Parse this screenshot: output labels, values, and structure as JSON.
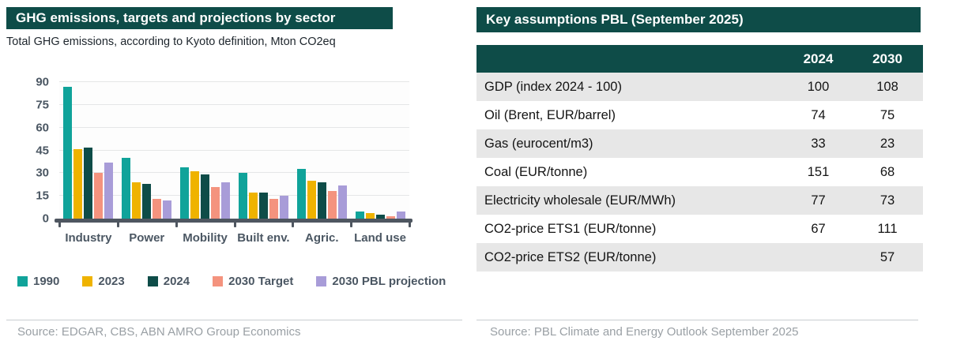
{
  "left_panel": {
    "title": "GHG emissions, targets and projections by sector",
    "subtitle": "Total GHG emissions, according to Kyoto definition, Mton CO2eq",
    "source": "Source: EDGAR, CBS, ABN AMRO Group Economics"
  },
  "right_panel": {
    "title": "Key assumptions PBL (September 2025)",
    "source": "Source: PBL Climate and Energy Outlook September 2025",
    "table": {
      "columns": [
        "",
        "2024",
        "2030"
      ],
      "rows": [
        {
          "label": "GDP (index 2024 - 100)",
          "v2024": "100",
          "v2030": "108"
        },
        {
          "label": "Oil (Brent, EUR/barrel)",
          "v2024": "74",
          "v2030": "75"
        },
        {
          "label": "Gas (eurocent/m3)",
          "v2024": "33",
          "v2030": "23"
        },
        {
          "label": "Coal (EUR/tonne)",
          "v2024": "151",
          "v2030": "68"
        },
        {
          "label": "Electricity wholesale (EUR/MWh)",
          "v2024": "77",
          "v2030": "73"
        },
        {
          "label": "CO2-price ETS1 (EUR/tonne)",
          "v2024": "67",
          "v2030": "111"
        },
        {
          "label": "CO2-price ETS2 (EUR/tonne)",
          "v2024": "",
          "v2030": "57"
        }
      ]
    }
  },
  "chart_data": {
    "type": "bar",
    "title": "GHG emissions, targets and projections by sector",
    "subtitle": "Total GHG emissions, according to Kyoto definition, Mton CO2eq",
    "categories": [
      "Industry",
      "Power",
      "Mobility",
      "Built env.",
      "Agric.",
      "Land use"
    ],
    "series": [
      {
        "name": "1990",
        "color": "#10a39a",
        "values": [
          87,
          40,
          34,
          30,
          33,
          4.5
        ]
      },
      {
        "name": "2023",
        "color": "#efb300",
        "values": [
          46,
          24,
          31,
          17,
          25,
          3.5
        ]
      },
      {
        "name": "2024",
        "color": "#0e4c48",
        "values": [
          47,
          23,
          29,
          17,
          24,
          2.5
        ]
      },
      {
        "name": "2030 Target",
        "color": "#f4937e",
        "values": [
          30,
          13,
          21,
          13,
          18,
          1.5
        ]
      },
      {
        "name": "2030 PBL projection",
        "color": "#a89cd8",
        "values": [
          37,
          12,
          24,
          15,
          22,
          4.5
        ]
      }
    ],
    "ylim": [
      0,
      90
    ],
    "yticks": [
      0,
      15,
      30,
      45,
      60,
      75,
      90
    ],
    "ylabel": "Mton CO2eq",
    "grid": "horizontal",
    "legend_position": "bottom"
  },
  "colors": {
    "brand_teal_dark": "#0e4c48",
    "grid_line": "#e5e6e7",
    "axis_line": "#4e5660",
    "axis_text": "#4b5763",
    "table_row_shaded": "#e7e7e7",
    "source_text": "#9aa0a5"
  }
}
